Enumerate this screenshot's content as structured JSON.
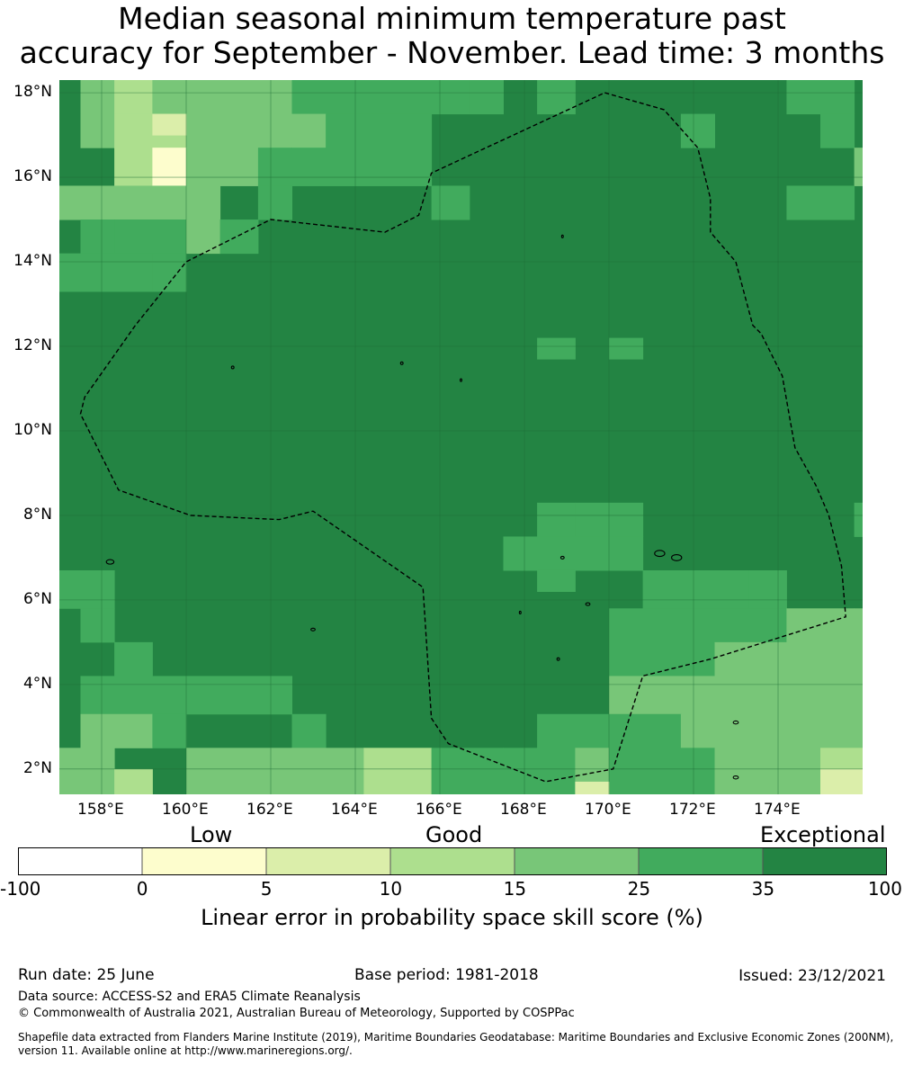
{
  "title": {
    "line1": "Median seasonal minimum temperature past",
    "line2": "accuracy for September - November. Lead time: 3 months"
  },
  "map": {
    "lat_labels": [
      "18°N",
      "16°N",
      "14°N",
      "12°N",
      "10°N",
      "8°N",
      "6°N",
      "4°N",
      "2°N"
    ],
    "lon_labels": [
      "158°E",
      "160°E",
      "162°E",
      "164°E",
      "166°E",
      "168°E",
      "170°E",
      "172°E",
      "174°E"
    ],
    "extent": {
      "lon": [
        157.0,
        176.0
      ],
      "lat": [
        1.4,
        18.3
      ]
    },
    "grid_step_deg": 0.833,
    "base_level": 6,
    "level_colors": [
      "#ffffff",
      "#fdfdcd",
      "#dbeeaa",
      "#addf8e",
      "#78c678",
      "#41ab5d",
      "#238443"
    ],
    "cell_patches": [
      {
        "lon": [
          157.5,
          158.3
        ],
        "lat": [
          17.5,
          18.3
        ],
        "level": 4
      },
      {
        "lon": [
          158.3,
          159.2
        ],
        "lat": [
          17.5,
          18.3
        ],
        "level": 3
      },
      {
        "lon": [
          159.2,
          162.5
        ],
        "lat": [
          17.5,
          18.3
        ],
        "level": 4
      },
      {
        "lon": [
          162.5,
          166.7
        ],
        "lat": [
          17.5,
          18.3
        ],
        "level": 5
      },
      {
        "lon": [
          166.7,
          167.5
        ],
        "lat": [
          17.5,
          18.3
        ],
        "level": 5
      },
      {
        "lon": [
          168.3,
          169.2
        ],
        "lat": [
          17.5,
          18.3
        ],
        "level": 5
      },
      {
        "lon": [
          174.2,
          175.8
        ],
        "lat": [
          17.5,
          18.3
        ],
        "level": 5
      },
      {
        "lon": [
          157.5,
          158.3
        ],
        "lat": [
          16.7,
          17.5
        ],
        "level": 4
      },
      {
        "lon": [
          158.3,
          160.0
        ],
        "lat": [
          16.7,
          17.5
        ],
        "level": 3
      },
      {
        "lon": [
          160.0,
          162.5
        ],
        "lat": [
          16.7,
          17.5
        ],
        "level": 4
      },
      {
        "lon": [
          162.5,
          163.3
        ],
        "lat": [
          16.7,
          17.5
        ],
        "level": 4
      },
      {
        "lon": [
          163.3,
          165.8
        ],
        "lat": [
          16.7,
          17.5
        ],
        "level": 5
      },
      {
        "lon": [
          171.7,
          172.5
        ],
        "lat": [
          16.7,
          17.5
        ],
        "level": 5
      },
      {
        "lon": [
          175.0,
          175.8
        ],
        "lat": [
          16.7,
          17.5
        ],
        "level": 5
      },
      {
        "lon": [
          158.3,
          159.2
        ],
        "lat": [
          15.8,
          16.7
        ],
        "level": 3
      },
      {
        "lon": [
          159.2,
          160.0
        ],
        "lat": [
          15.8,
          16.7
        ],
        "level": 1
      },
      {
        "lon": [
          160.0,
          161.7
        ],
        "lat": [
          15.8,
          16.7
        ],
        "level": 4
      },
      {
        "lon": [
          161.7,
          162.5
        ],
        "lat": [
          15.8,
          16.7
        ],
        "level": 5
      },
      {
        "lon": [
          162.5,
          165.8
        ],
        "lat": [
          15.8,
          16.7
        ],
        "level": 5
      },
      {
        "lon": [
          175.8,
          176.0
        ],
        "lat": [
          15.8,
          16.7
        ],
        "level": 4
      },
      {
        "lon": [
          157.0,
          160.8
        ],
        "lat": [
          15.0,
          15.8
        ],
        "level": 4
      },
      {
        "lon": [
          161.7,
          162.5
        ],
        "lat": [
          15.0,
          15.8
        ],
        "level": 5
      },
      {
        "lon": [
          165.8,
          166.7
        ],
        "lat": [
          15.0,
          15.8
        ],
        "level": 5
      },
      {
        "lon": [
          174.2,
          175.8
        ],
        "lat": [
          15.0,
          15.8
        ],
        "level": 5
      },
      {
        "lon": [
          157.5,
          158.3
        ],
        "lat": [
          14.2,
          15.0
        ],
        "level": 5
      },
      {
        "lon": [
          158.3,
          160.0
        ],
        "lat": [
          14.2,
          15.0
        ],
        "level": 5
      },
      {
        "lon": [
          160.0,
          160.8
        ],
        "lat": [
          14.2,
          15.0
        ],
        "level": 4
      },
      {
        "lon": [
          160.8,
          161.7
        ],
        "lat": [
          14.2,
          15.0
        ],
        "level": 5
      },
      {
        "lon": [
          157.0,
          157.5
        ],
        "lat": [
          13.3,
          14.2
        ],
        "level": 5
      },
      {
        "lon": [
          157.5,
          159.2
        ],
        "lat": [
          13.3,
          14.2
        ],
        "level": 5
      },
      {
        "lon": [
          159.2,
          160.0
        ],
        "lat": [
          13.3,
          14.2
        ],
        "level": 5
      },
      {
        "lon": [
          168.3,
          169.2
        ],
        "lat": [
          11.7,
          12.2
        ],
        "level": 5
      },
      {
        "lon": [
          170.0,
          170.8
        ],
        "lat": [
          11.7,
          12.2
        ],
        "level": 5
      },
      {
        "lon": [
          168.3,
          169.2
        ],
        "lat": [
          7.5,
          8.3
        ],
        "level": 5
      },
      {
        "lon": [
          169.2,
          170.8
        ],
        "lat": [
          7.5,
          8.3
        ],
        "level": 5
      },
      {
        "lon": [
          175.8,
          176.0
        ],
        "lat": [
          7.5,
          8.3
        ],
        "level": 5
      },
      {
        "lon": [
          167.5,
          170.8
        ],
        "lat": [
          6.7,
          7.5
        ],
        "level": 5
      },
      {
        "lon": [
          168.3,
          169.2
        ],
        "lat": [
          6.2,
          6.7
        ],
        "level": 5
      },
      {
        "lon": [
          157.0,
          158.3
        ],
        "lat": [
          5.8,
          6.7
        ],
        "level": 5
      },
      {
        "lon": [
          170.8,
          173.3
        ],
        "lat": [
          5.8,
          6.7
        ],
        "level": 5
      },
      {
        "lon": [
          173.3,
          174.2
        ],
        "lat": [
          5.8,
          6.7
        ],
        "level": 5
      },
      {
        "lon": [
          157.5,
          158.3
        ],
        "lat": [
          5.0,
          5.8
        ],
        "level": 5
      },
      {
        "lon": [
          170.0,
          174.2
        ],
        "lat": [
          4.2,
          5.8
        ],
        "level": 5
      },
      {
        "lon": [
          174.2,
          175.8
        ],
        "lat": [
          5.0,
          5.8
        ],
        "level": 4
      },
      {
        "lon": [
          175.8,
          176.0
        ],
        "lat": [
          4.2,
          5.8
        ],
        "level": 4
      },
      {
        "lon": [
          158.3,
          159.2
        ],
        "lat": [
          4.2,
          5.0
        ],
        "level": 5
      },
      {
        "lon": [
          172.5,
          173.3
        ],
        "lat": [
          4.2,
          5.0
        ],
        "level": 4
      },
      {
        "lon": [
          173.3,
          175.8
        ],
        "lat": [
          4.2,
          5.0
        ],
        "level": 4
      },
      {
        "lon": [
          157.5,
          162.5
        ],
        "lat": [
          3.3,
          4.2
        ],
        "level": 5
      },
      {
        "lon": [
          170.0,
          176.0
        ],
        "lat": [
          3.3,
          4.2
        ],
        "level": 4
      },
      {
        "lon": [
          157.5,
          159.2
        ],
        "lat": [
          2.5,
          3.3
        ],
        "level": 4
      },
      {
        "lon": [
          159.2,
          160.0
        ],
        "lat": [
          2.5,
          3.3
        ],
        "level": 5
      },
      {
        "lon": [
          162.5,
          163.3
        ],
        "lat": [
          2.5,
          3.3
        ],
        "level": 5
      },
      {
        "lon": [
          168.3,
          170.0
        ],
        "lat": [
          2.5,
          3.3
        ],
        "level": 5
      },
      {
        "lon": [
          170.0,
          171.7
        ],
        "lat": [
          2.5,
          3.3
        ],
        "level": 5
      },
      {
        "lon": [
          171.7,
          172.5
        ],
        "lat": [
          2.5,
          3.3
        ],
        "level": 4
      },
      {
        "lon": [
          172.5,
          176.0
        ],
        "lat": [
          2.5,
          3.3
        ],
        "level": 4
      },
      {
        "lon": [
          157.0,
          158.3
        ],
        "lat": [
          1.4,
          2.5
        ],
        "level": 4
      },
      {
        "lon": [
          160.0,
          162.5
        ],
        "lat": [
          1.4,
          2.5
        ],
        "level": 4
      },
      {
        "lon": [
          162.5,
          164.2
        ],
        "lat": [
          1.4,
          2.5
        ],
        "level": 4
      },
      {
        "lon": [
          164.2,
          165.8
        ],
        "lat": [
          1.4,
          2.5
        ],
        "level": 3
      },
      {
        "lon": [
          165.8,
          167.5
        ],
        "lat": [
          1.4,
          2.5
        ],
        "level": 5
      },
      {
        "lon": [
          167.5,
          169.2
        ],
        "lat": [
          1.4,
          2.5
        ],
        "level": 5
      },
      {
        "lon": [
          169.2,
          170.0
        ],
        "lat": [
          1.4,
          2.5
        ],
        "level": 4
      },
      {
        "lon": [
          170.0,
          172.5
        ],
        "lat": [
          1.4,
          2.5
        ],
        "level": 5
      },
      {
        "lon": [
          172.5,
          175.0
        ],
        "lat": [
          1.4,
          2.5
        ],
        "level": 4
      },
      {
        "lon": [
          175.0,
          176.0
        ],
        "lat": [
          1.4,
          2.5
        ],
        "level": 3
      },
      {
        "lon": [
          158.3,
          159.2
        ],
        "lat": [
          1.4,
          2.0
        ],
        "level": 3
      },
      {
        "lon": [
          175.0,
          176.0
        ],
        "lat": [
          1.4,
          2.0
        ],
        "level": 2
      },
      {
        "lon": [
          159.2,
          160.0
        ],
        "lat": [
          17.0,
          17.5
        ],
        "level": 2
      },
      {
        "lon": [
          169.2,
          170.0
        ],
        "lat": [
          1.4,
          1.7
        ],
        "level": 2
      }
    ],
    "eez_boundary": [
      [
        169.9,
        18.0
      ],
      [
        171.3,
        17.6
      ],
      [
        172.1,
        16.7
      ],
      [
        172.4,
        15.5
      ],
      [
        172.4,
        14.7
      ],
      [
        173.0,
        14.0
      ],
      [
        173.4,
        12.5
      ],
      [
        173.6,
        12.3
      ],
      [
        174.1,
        11.3
      ],
      [
        174.4,
        9.6
      ],
      [
        174.9,
        8.7
      ],
      [
        175.2,
        8.0
      ],
      [
        175.5,
        6.8
      ],
      [
        175.6,
        5.6
      ],
      [
        172.4,
        4.6
      ],
      [
        170.8,
        4.2
      ],
      [
        170.1,
        2.0
      ],
      [
        168.5,
        1.7
      ],
      [
        166.2,
        2.6
      ],
      [
        165.8,
        3.2
      ],
      [
        165.6,
        6.3
      ],
      [
        163.0,
        8.1
      ],
      [
        162.2,
        7.9
      ],
      [
        160.1,
        8.0
      ],
      [
        158.4,
        8.6
      ],
      [
        157.5,
        10.4
      ],
      [
        157.6,
        10.8
      ],
      [
        158.8,
        12.5
      ],
      [
        160.0,
        14.0
      ],
      [
        162.0,
        15.0
      ],
      [
        164.7,
        14.7
      ],
      [
        165.5,
        15.1
      ],
      [
        165.8,
        16.1
      ],
      [
        169.9,
        18.0
      ]
    ]
  },
  "colorbar": {
    "labels": [
      "-100",
      "0",
      "5",
      "10",
      "15",
      "25",
      "35",
      "100"
    ],
    "words": [
      "Low",
      "Good",
      "Exceptional"
    ],
    "title": "Linear error in probability space skill score (%)"
  },
  "footer": {
    "run_date": "Run date: 25 June",
    "base_period": "Base period: 1981-2018",
    "issued": "Issued: 23/12/2021",
    "data_source": "Data source: ACCESS-S2 and ERA5 Climate Reanalysis",
    "copyright": "© Commonwealth of Australia 2021, Australian Bureau of Meteorology, Supported by COSPPac",
    "shapefile_line1": "Shapefile data extracted from Flanders Marine Institute (2019), Maritime Boundaries Geodatabase: Maritime Boundaries and Exclusive Economic Zones (200NM),",
    "shapefile_line2": "version 11. Available online at http://www.marineregions.org/."
  }
}
